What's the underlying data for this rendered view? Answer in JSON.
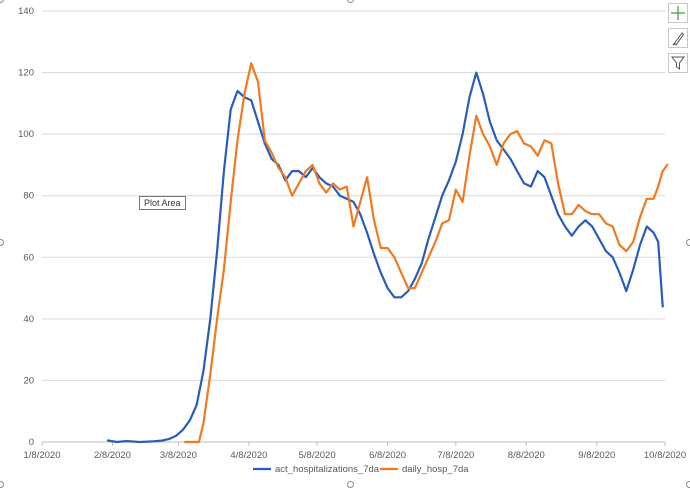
{
  "tooltip": "Plot Area",
  "toolbar": {
    "elements_icon": "plus-icon",
    "styles_icon": "brush-icon",
    "filters_icon": "funnel-icon"
  },
  "colors": {
    "act_hospitalizations_7da": "#2a5cba",
    "daily_hosp_7da": "#f07a22",
    "grid": "#d9d9d9",
    "axis_text": "#595959"
  },
  "chart_data": {
    "type": "line",
    "title": "",
    "xlabel": "",
    "ylabel": "",
    "x_ticks": [
      "1/8/2020",
      "2/8/2020",
      "3/8/2020",
      "4/8/2020",
      "5/8/2020",
      "6/8/2020",
      "7/8/2020",
      "8/8/2020",
      "9/8/2020",
      "10/8/2020"
    ],
    "y_ticks": [
      0,
      20,
      40,
      60,
      80,
      100,
      120,
      140
    ],
    "ylim": [
      0,
      140
    ],
    "xlim": [
      "1/8/2020",
      "10/8/2020"
    ],
    "grid": "horizontal",
    "legend_position": "bottom",
    "series": [
      {
        "name": "act_hospitalizations_7da",
        "color": "#2a5cba",
        "points": [
          [
            "2/6/2020",
            0.5
          ],
          [
            "2/10/2020",
            0
          ],
          [
            "2/14/2020",
            0.3
          ],
          [
            "2/20/2020",
            0
          ],
          [
            "2/26/2020",
            0.2
          ],
          [
            "3/1/2020",
            0.5
          ],
          [
            "3/4/2020",
            1
          ],
          [
            "3/7/2020",
            2
          ],
          [
            "3/10/2020",
            4
          ],
          [
            "3/13/2020",
            7
          ],
          [
            "3/16/2020",
            12
          ],
          [
            "3/19/2020",
            23
          ],
          [
            "3/22/2020",
            40
          ],
          [
            "3/25/2020",
            62
          ],
          [
            "3/28/2020",
            88
          ],
          [
            "3/31/2020",
            108
          ],
          [
            "4/3/2020",
            114
          ],
          [
            "4/6/2020",
            112
          ],
          [
            "4/9/2020",
            111
          ],
          [
            "4/12/2020",
            104
          ],
          [
            "4/15/2020",
            97
          ],
          [
            "4/18/2020",
            92
          ],
          [
            "4/21/2020",
            90
          ],
          [
            "4/24/2020",
            85
          ],
          [
            "4/27/2020",
            88
          ],
          [
            "4/30/2020",
            88
          ],
          [
            "5/3/2020",
            86
          ],
          [
            "5/6/2020",
            89
          ],
          [
            "5/9/2020",
            86
          ],
          [
            "5/12/2020",
            84
          ],
          [
            "5/15/2020",
            83
          ],
          [
            "5/18/2020",
            80
          ],
          [
            "5/21/2020",
            79
          ],
          [
            "5/24/2020",
            78
          ],
          [
            "5/27/2020",
            74
          ],
          [
            "5/30/2020",
            68
          ],
          [
            "6/2/2020",
            61
          ],
          [
            "6/5/2020",
            55
          ],
          [
            "6/8/2020",
            50
          ],
          [
            "6/11/2020",
            47
          ],
          [
            "6/14/2020",
            47
          ],
          [
            "6/17/2020",
            49
          ],
          [
            "6/20/2020",
            53
          ],
          [
            "6/23/2020",
            58
          ],
          [
            "6/26/2020",
            66
          ],
          [
            "6/29/2020",
            73
          ],
          [
            "7/2/2020",
            80
          ],
          [
            "7/5/2020",
            85
          ],
          [
            "7/8/2020",
            91
          ],
          [
            "7/11/2020",
            100
          ],
          [
            "7/14/2020",
            112
          ],
          [
            "7/17/2020",
            120
          ],
          [
            "7/20/2020",
            113
          ],
          [
            "7/23/2020",
            104
          ],
          [
            "7/26/2020",
            98
          ],
          [
            "7/29/2020",
            95
          ],
          [
            "8/1/2020",
            92
          ],
          [
            "8/4/2020",
            88
          ],
          [
            "8/7/2020",
            84
          ],
          [
            "8/10/2020",
            83
          ],
          [
            "8/13/2020",
            88
          ],
          [
            "8/16/2020",
            86
          ],
          [
            "8/19/2020",
            80
          ],
          [
            "8/22/2020",
            74
          ],
          [
            "8/25/2020",
            70
          ],
          [
            "8/28/2020",
            67
          ],
          [
            "8/31/2020",
            70
          ],
          [
            "9/3/2020",
            72
          ],
          [
            "9/6/2020",
            70
          ],
          [
            "9/9/2020",
            66
          ],
          [
            "9/12/2020",
            62
          ],
          [
            "9/15/2020",
            60
          ],
          [
            "9/18/2020",
            55
          ],
          [
            "9/21/2020",
            49
          ],
          [
            "9/24/2020",
            56
          ],
          [
            "9/27/2020",
            64
          ],
          [
            "9/30/2020",
            70
          ],
          [
            "10/3/2020",
            68
          ],
          [
            "10/5/2020",
            65
          ],
          [
            "10/7/2020",
            44
          ]
        ]
      },
      {
        "name": "daily_hosp_7da",
        "color": "#f07a22",
        "points": [
          [
            "3/11/2020",
            0
          ],
          [
            "3/17/2020",
            0
          ],
          [
            "3/19/2020",
            6
          ],
          [
            "3/22/2020",
            22
          ],
          [
            "3/25/2020",
            40
          ],
          [
            "3/28/2020",
            56
          ],
          [
            "3/31/2020",
            78
          ],
          [
            "4/3/2020",
            98
          ],
          [
            "4/6/2020",
            113
          ],
          [
            "4/9/2020",
            123
          ],
          [
            "4/12/2020",
            117
          ],
          [
            "4/15/2020",
            98
          ],
          [
            "4/18/2020",
            94
          ],
          [
            "4/21/2020",
            89
          ],
          [
            "4/24/2020",
            86
          ],
          [
            "4/27/2020",
            80
          ],
          [
            "4/30/2020",
            84
          ],
          [
            "5/3/2020",
            88
          ],
          [
            "5/6/2020",
            90
          ],
          [
            "5/9/2020",
            84
          ],
          [
            "5/12/2020",
            81
          ],
          [
            "5/15/2020",
            84
          ],
          [
            "5/18/2020",
            82
          ],
          [
            "5/21/2020",
            83
          ],
          [
            "5/24/2020",
            70
          ],
          [
            "5/27/2020",
            78
          ],
          [
            "5/30/2020",
            86
          ],
          [
            "6/2/2020",
            72
          ],
          [
            "6/5/2020",
            63
          ],
          [
            "6/8/2020",
            63
          ],
          [
            "6/11/2020",
            60
          ],
          [
            "6/14/2020",
            55
          ],
          [
            "6/17/2020",
            50
          ],
          [
            "6/20/2020",
            50
          ],
          [
            "6/23/2020",
            55
          ],
          [
            "6/26/2020",
            60
          ],
          [
            "6/29/2020",
            65
          ],
          [
            "7/2/2020",
            71
          ],
          [
            "7/5/2020",
            72
          ],
          [
            "7/8/2020",
            82
          ],
          [
            "7/11/2020",
            78
          ],
          [
            "7/14/2020",
            93
          ],
          [
            "7/17/2020",
            106
          ],
          [
            "7/20/2020",
            100
          ],
          [
            "7/23/2020",
            96
          ],
          [
            "7/26/2020",
            90
          ],
          [
            "7/29/2020",
            97
          ],
          [
            "8/1/2020",
            100
          ],
          [
            "8/4/2020",
            101
          ],
          [
            "8/7/2020",
            97
          ],
          [
            "8/10/2020",
            96
          ],
          [
            "8/13/2020",
            93
          ],
          [
            "8/16/2020",
            98
          ],
          [
            "8/19/2020",
            97
          ],
          [
            "8/22/2020",
            84
          ],
          [
            "8/25/2020",
            74
          ],
          [
            "8/28/2020",
            74
          ],
          [
            "8/31/2020",
            77
          ],
          [
            "9/3/2020",
            75
          ],
          [
            "9/6/2020",
            74
          ],
          [
            "9/9/2020",
            74
          ],
          [
            "9/12/2020",
            71
          ],
          [
            "9/15/2020",
            70
          ],
          [
            "9/18/2020",
            64
          ],
          [
            "9/21/2020",
            62
          ],
          [
            "9/24/2020",
            65
          ],
          [
            "9/27/2020",
            73
          ],
          [
            "9/30/2020",
            79
          ],
          [
            "10/3/2020",
            79
          ],
          [
            "10/5/2020",
            83
          ],
          [
            "10/7/2020",
            88
          ],
          [
            "10/9/2020",
            90
          ]
        ]
      }
    ]
  }
}
